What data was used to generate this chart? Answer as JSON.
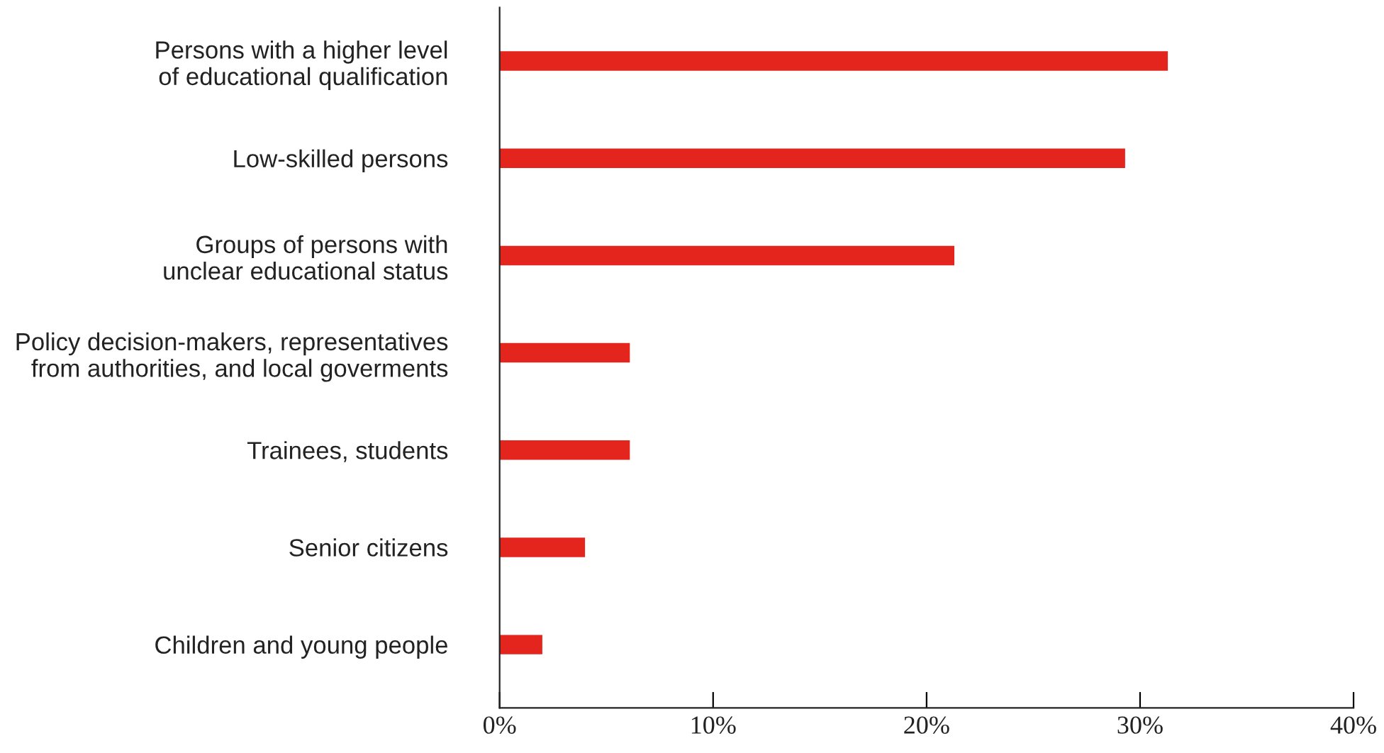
{
  "chart_data": {
    "type": "bar",
    "orientation": "horizontal",
    "categories": [
      "Persons with a higher level\nof educational qualification",
      "Low-skilled persons",
      "Groups of persons with\nunclear educational status",
      "Policy decision-makers, representatives\nfrom authorities, and local goverments",
      "Trainees, students",
      "Senior citizens",
      "Children and young people"
    ],
    "values": [
      31.3,
      29.3,
      21.3,
      6.1,
      6.1,
      4.0,
      2.0
    ],
    "color": "#e4251d",
    "xlim": [
      0,
      40
    ],
    "xticks": [
      {
        "value": 0,
        "label": "0%"
      },
      {
        "value": 10,
        "label": "10%"
      },
      {
        "value": 20,
        "label": "20%"
      },
      {
        "value": 30,
        "label": "30%"
      },
      {
        "value": 40,
        "label": "40%"
      }
    ],
    "grid": false
  }
}
